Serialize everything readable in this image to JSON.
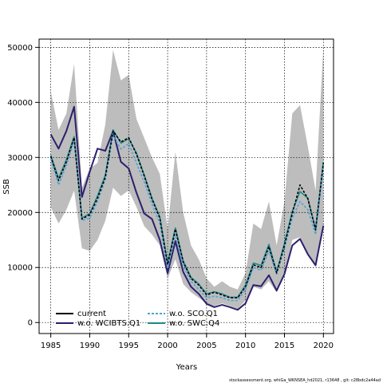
{
  "chart_data": {
    "type": "line",
    "title": "",
    "xlabel": "Years",
    "ylabel": "SSB",
    "xlim": [
      1983.5,
      2021.3
    ],
    "ylim": [
      -2000,
      51500
    ],
    "x_ticks": [
      1985,
      1990,
      1995,
      2000,
      2005,
      2010,
      2015,
      2020
    ],
    "y_ticks": [
      0,
      10000,
      20000,
      30000,
      40000,
      50000
    ],
    "grid": true,
    "legend_position": "bottom-left",
    "x": [
      1985,
      1986,
      1987,
      1988,
      1989,
      1990,
      1991,
      1992,
      1993,
      1994,
      1995,
      1996,
      1997,
      1998,
      1999,
      2000,
      2001,
      2002,
      2003,
      2004,
      2005,
      2006,
      2007,
      2008,
      2009,
      2010,
      2011,
      2012,
      2013,
      2014,
      2015,
      2016,
      2017,
      2018,
      2019,
      2020
    ],
    "confidence_band": {
      "color": "#bdbdbd",
      "upper": [
        42000,
        35000,
        38000,
        47000,
        24500,
        28000,
        29000,
        36000,
        49500,
        44000,
        45000,
        37000,
        33500,
        30000,
        27000,
        17000,
        31000,
        20000,
        14000,
        11500,
        8000,
        6500,
        7500,
        6500,
        6000,
        9000,
        18000,
        17000,
        22000,
        14000,
        22000,
        38000,
        39500,
        32000,
        24000,
        50000
      ],
      "lower": [
        21000,
        18000,
        20500,
        24000,
        13500,
        13000,
        15000,
        18500,
        24500,
        23000,
        24000,
        21000,
        17500,
        16000,
        14000,
        8000,
        11500,
        7000,
        5500,
        4500,
        3500,
        3000,
        3500,
        3000,
        2500,
        4000,
        6500,
        6000,
        7500,
        5500,
        8500,
        15000,
        15500,
        12500,
        10500,
        17000
      ]
    },
    "series": [
      {
        "name": "current",
        "color": "#000000",
        "style": "solid",
        "values": [
          30200,
          25800,
          29200,
          33600,
          18800,
          19600,
          22600,
          26400,
          34800,
          32800,
          33600,
          30600,
          26600,
          22400,
          19000,
          10500,
          17000,
          11000,
          8000,
          6800,
          5000,
          5500,
          5000,
          4500,
          4500,
          6500,
          10500,
          10000,
          13800,
          9000,
          14000,
          19800,
          25000,
          22500,
          16800,
          29000
        ]
      },
      {
        "name": "w.o. WCIBTS.Q1",
        "color": "#2d1f6e",
        "style": "solid",
        "values": [
          34200,
          31600,
          34800,
          39200,
          22800,
          27400,
          31600,
          31200,
          34800,
          29200,
          28000,
          23600,
          19800,
          18800,
          15000,
          9000,
          14800,
          9200,
          6500,
          5200,
          3400,
          2800,
          3200,
          2800,
          2300,
          3500,
          6800,
          6600,
          8600,
          5800,
          8800,
          14000,
          15200,
          12400,
          10400,
          17600
        ]
      },
      {
        "name": "w.o. SCO.Q1",
        "color": "#4ea3d8",
        "style": "dashed",
        "values": [
          29800,
          25000,
          28500,
          33000,
          18500,
          19000,
          22000,
          26000,
          34000,
          31500,
          32500,
          29000,
          25500,
          21500,
          18000,
          9800,
          16000,
          10200,
          7500,
          6000,
          4500,
          4800,
          4500,
          4000,
          4000,
          6000,
          10000,
          9500,
          13000,
          8800,
          13500,
          19000,
          22000,
          20500,
          16000,
          28500
        ]
      },
      {
        "name": "w.o. SWC.Q4",
        "color": "#1f8a8a",
        "style": "solid",
        "values": [
          30400,
          26200,
          29600,
          33800,
          19000,
          19800,
          23000,
          26800,
          35000,
          32600,
          33400,
          30800,
          26800,
          22600,
          19200,
          10800,
          17200,
          11200,
          8200,
          7000,
          5200,
          5600,
          5200,
          4600,
          4600,
          6800,
          10800,
          10400,
          14200,
          9200,
          14400,
          20200,
          23800,
          22600,
          17000,
          29200
        ]
      }
    ]
  },
  "footer": "stockassessment.org,  whiGa_WKNSEA_hd2021,  r13648 ,  git: c28bdc2a44ad"
}
